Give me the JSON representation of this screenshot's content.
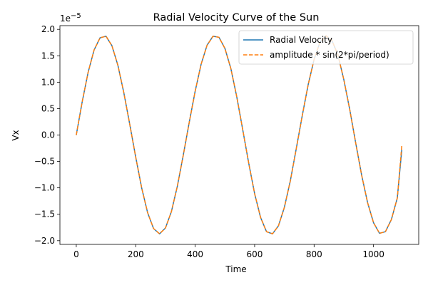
{
  "chart_data": {
    "type": "line",
    "title": "Radial Velocity Curve of the Sun",
    "xlabel": "Time",
    "ylabel": "Vx",
    "y_offset_base": "1e",
    "y_offset_exponent": "−5",
    "xlim": [
      -55,
      1152
    ],
    "ylim": [
      -2.07,
      2.07
    ],
    "y_scale_factor": 1e-05,
    "x_ticks": [
      0,
      200,
      400,
      600,
      800,
      1000
    ],
    "x_tick_labels": [
      "0",
      "200",
      "400",
      "600",
      "800",
      "1000"
    ],
    "y_ticks": [
      -2.0,
      -1.5,
      -1.0,
      -0.5,
      0.0,
      0.5,
      1.0,
      1.5,
      2.0
    ],
    "y_tick_labels": [
      "−2.0",
      "−1.5",
      "−1.0",
      "−0.5",
      "0.0",
      "0.5",
      "1.0",
      "1.5",
      "2.0"
    ],
    "grid": false,
    "legend_position": "top-right",
    "x": [
      0,
      20,
      40,
      60,
      80,
      100,
      120,
      140,
      160,
      180,
      200,
      220,
      240,
      260,
      280,
      300,
      320,
      340,
      360,
      380,
      400,
      420,
      440,
      460,
      480,
      500,
      520,
      540,
      560,
      580,
      600,
      620,
      640,
      660,
      680,
      700,
      720,
      740,
      760,
      780,
      800,
      820,
      840,
      860,
      880,
      900,
      920,
      940,
      960,
      980,
      1000,
      1020,
      1040,
      1060,
      1080,
      1095
    ],
    "series": [
      {
        "name": "Radial Velocity",
        "color": "#1f77b4",
        "style": "solid",
        "values": [
          0.0,
          0.63,
          1.19,
          1.61,
          1.84,
          1.87,
          1.69,
          1.32,
          0.8,
          0.2,
          -0.42,
          -1.0,
          -1.47,
          -1.77,
          -1.87,
          -1.76,
          -1.45,
          -0.97,
          -0.38,
          0.24,
          0.83,
          1.34,
          1.7,
          1.87,
          1.85,
          1.64,
          1.26,
          0.72,
          0.1,
          -0.53,
          -1.11,
          -1.56,
          -1.83,
          -1.87,
          -1.72,
          -1.37,
          -0.87,
          -0.26,
          0.36,
          0.95,
          1.43,
          1.76,
          1.88,
          1.79,
          1.52,
          1.05,
          0.48,
          -0.15,
          -0.76,
          -1.28,
          -1.66,
          -1.86,
          -1.83,
          -1.6,
          -1.19,
          -0.28
        ]
      },
      {
        "name": "amplitude * sin(2*pi/period)",
        "color": "#ff7f0e",
        "style": "dashed",
        "values": [
          0.0,
          0.63,
          1.19,
          1.61,
          1.84,
          1.87,
          1.69,
          1.32,
          0.8,
          0.2,
          -0.42,
          -1.0,
          -1.47,
          -1.77,
          -1.87,
          -1.76,
          -1.45,
          -0.97,
          -0.38,
          0.24,
          0.83,
          1.34,
          1.7,
          1.87,
          1.85,
          1.64,
          1.26,
          0.72,
          0.1,
          -0.53,
          -1.11,
          -1.56,
          -1.83,
          -1.87,
          -1.72,
          -1.37,
          -0.87,
          -0.26,
          0.36,
          0.95,
          1.43,
          1.76,
          1.88,
          1.79,
          1.52,
          1.05,
          0.48,
          -0.15,
          -0.76,
          -1.28,
          -1.66,
          -1.86,
          -1.83,
          -1.6,
          -1.19,
          -0.2
        ]
      }
    ]
  }
}
